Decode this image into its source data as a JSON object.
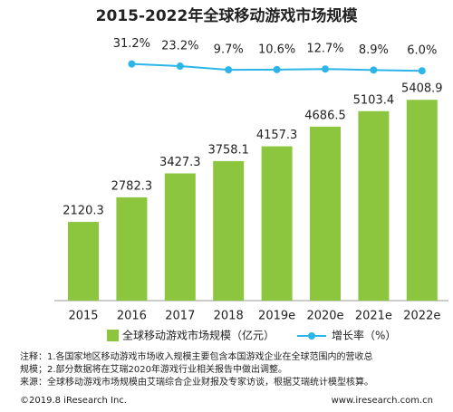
{
  "chart_data": {
    "type": "bar_line",
    "title": "2015-2022年全球移动游戏市场规模",
    "categories": [
      "2015",
      "2016",
      "2017",
      "2018",
      "2019e",
      "2020e",
      "2021e",
      "2022e"
    ],
    "series": [
      {
        "name": "全球移动游戏市场规模（亿元）",
        "type": "bar",
        "color": "#8cc63f",
        "values": [
          2120.3,
          2782.3,
          3427.3,
          3758.1,
          4157.3,
          4686.5,
          5103.4,
          5408.9
        ]
      },
      {
        "name": "增长率（%）",
        "type": "line",
        "axis": "y2",
        "color": "#2cb5e8",
        "values": [
          null,
          31.2,
          23.2,
          9.7,
          10.6,
          12.7,
          8.9,
          6.0
        ],
        "value_labels": [
          null,
          "31.2%",
          "23.2%",
          "9.7%",
          "10.6%",
          "12.7%",
          "8.9%",
          "6.0%"
        ]
      }
    ],
    "ylim": [
      0,
      6000
    ],
    "y2lim": [
      -100,
      100
    ],
    "notes": [
      "注释：1.各国家地区移动游戏市场收入规模主要包含本国游戏企业在全球范围内的营收总",
      "规模；2.部分数据将在艾瑞2020年游戏行业相关报告中做出调整。",
      "来源：全球移动游戏市场规模由艾瑞综合企业财报及专家访谈，根据艾瑞统计模型核算。"
    ],
    "footer_left": "©2019.8 iResearch Inc.",
    "footer_right": "www.iresearch.com.cn"
  }
}
